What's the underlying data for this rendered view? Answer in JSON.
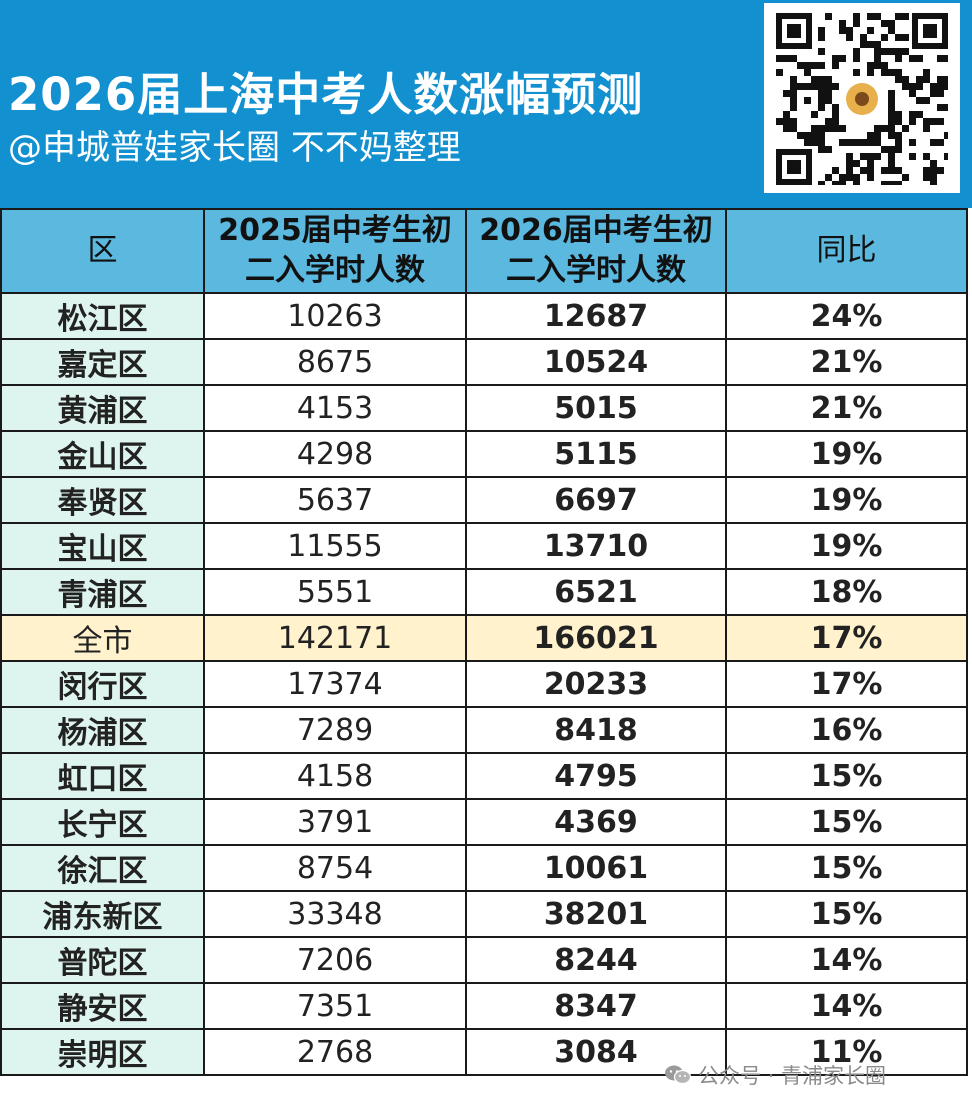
{
  "header": {
    "title": "2026届上海中考人数涨幅预测",
    "subtitle": "@申城普娃家长圈 不不妈整理"
  },
  "qr": {
    "icon": "qr-code-icon"
  },
  "table": {
    "headers": {
      "district": "区",
      "y2025_line1": "2025届中考生初",
      "y2025_line2": "二入学时人数",
      "y2026_line1": "2026届中考生初",
      "y2026_line2": "二入学时人数",
      "yoy": "同比"
    },
    "rows": [
      {
        "district": "松江区",
        "y2025": "10263",
        "y2026": "12687",
        "yoy": "24%"
      },
      {
        "district": "嘉定区",
        "y2025": "8675",
        "y2026": "10524",
        "yoy": "21%"
      },
      {
        "district": "黄浦区",
        "y2025": "4153",
        "y2026": "5015",
        "yoy": "21%"
      },
      {
        "district": "金山区",
        "y2025": "4298",
        "y2026": "5115",
        "yoy": "19%"
      },
      {
        "district": "奉贤区",
        "y2025": "5637",
        "y2026": "6697",
        "yoy": "19%"
      },
      {
        "district": "宝山区",
        "y2025": "11555",
        "y2026": "13710",
        "yoy": "19%"
      },
      {
        "district": "青浦区",
        "y2025": "5551",
        "y2026": "6521",
        "yoy": "18%"
      },
      {
        "district": "全市",
        "y2025": "142171",
        "y2026": "166021",
        "yoy": "17%",
        "total": true
      },
      {
        "district": "闵行区",
        "y2025": "17374",
        "y2026": "20233",
        "yoy": "17%"
      },
      {
        "district": "杨浦区",
        "y2025": "7289",
        "y2026": "8418",
        "yoy": "16%"
      },
      {
        "district": "虹口区",
        "y2025": "4158",
        "y2026": "4795",
        "yoy": "15%"
      },
      {
        "district": "长宁区",
        "y2025": "3791",
        "y2026": "4369",
        "yoy": "15%"
      },
      {
        "district": "徐汇区",
        "y2025": "8754",
        "y2026": "10061",
        "yoy": "15%"
      },
      {
        "district": "浦东新区",
        "y2025": "33348",
        "y2026": "38201",
        "yoy": "15%"
      },
      {
        "district": "普陀区",
        "y2025": "7206",
        "y2026": "8244",
        "yoy": "14%"
      },
      {
        "district": "静安区",
        "y2025": "7351",
        "y2026": "8347",
        "yoy": "14%"
      },
      {
        "district": "崇明区",
        "y2025": "2768",
        "y2026": "3084",
        "yoy": "11%"
      }
    ]
  },
  "watermark": {
    "text": "公众号 · 青浦家长圈",
    "icon": "wechat-icon"
  },
  "colors": {
    "header_bg": "#1290cf",
    "table_header_bg": "#5bb8df",
    "district_bg": "#def4ef",
    "total_row_bg": "#fff2cc"
  }
}
